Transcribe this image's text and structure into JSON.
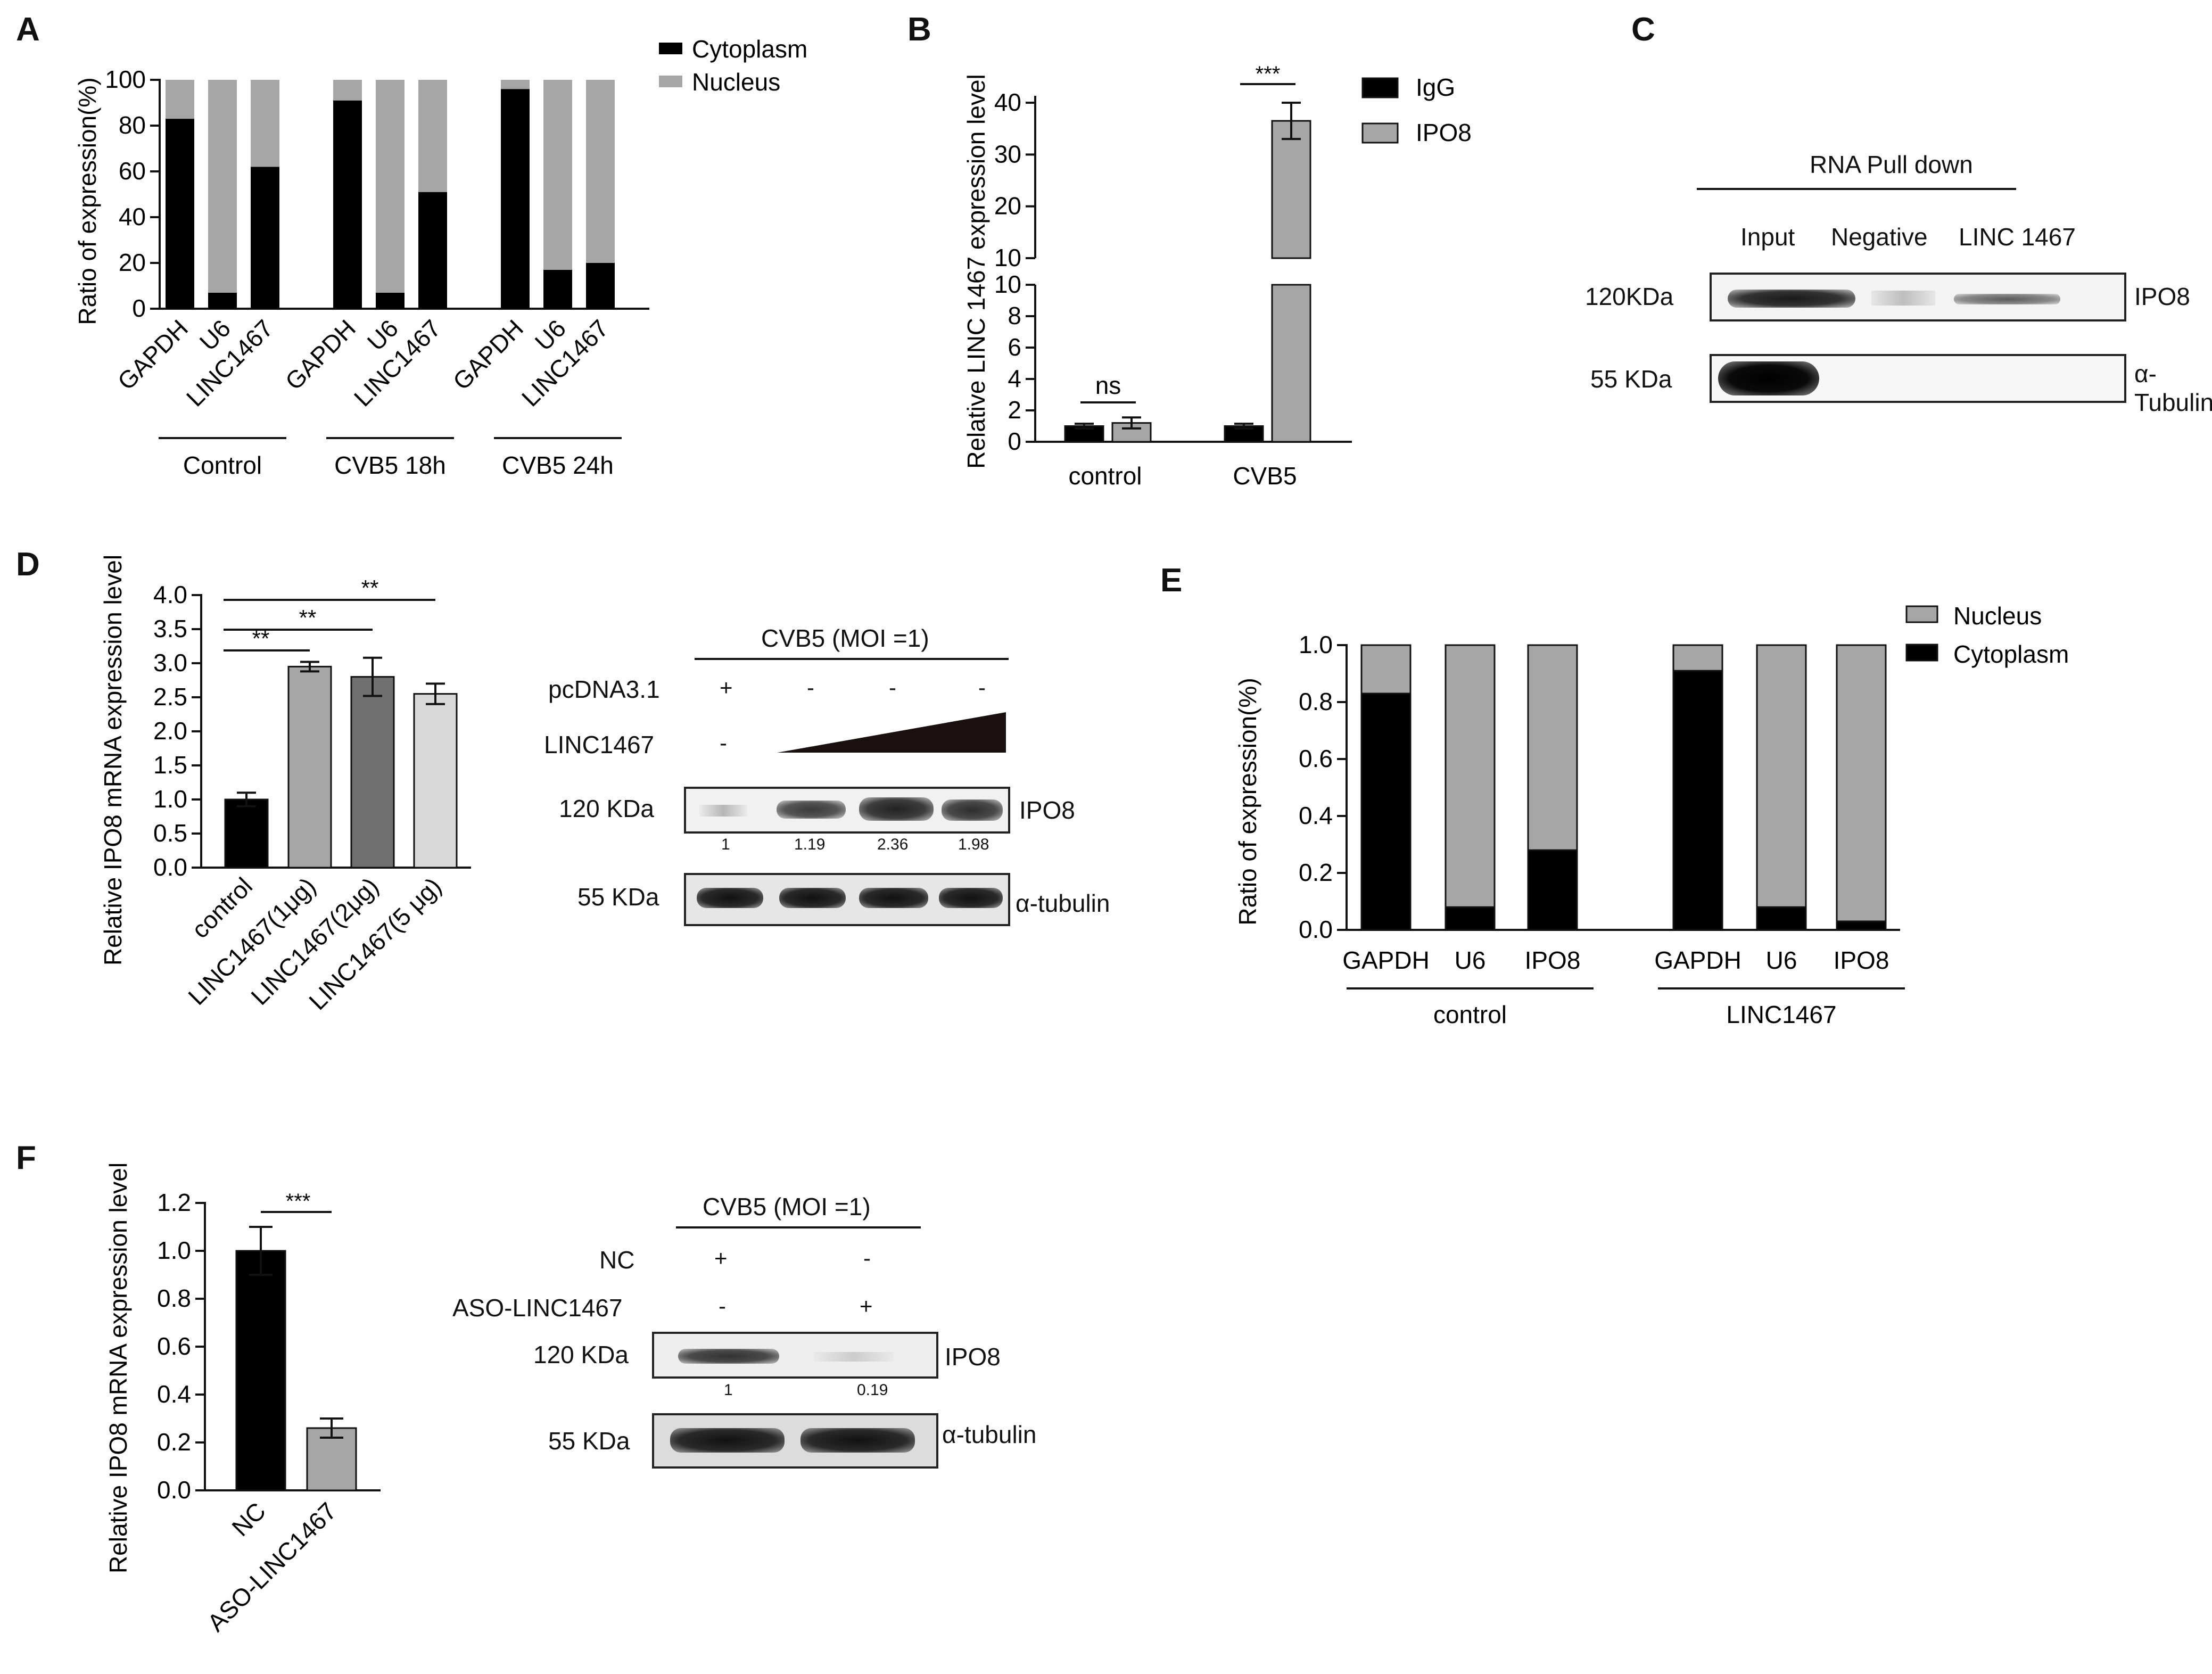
{
  "panels": {
    "A": {
      "label": "A",
      "chart_data": {
        "type": "bar",
        "stacked": true,
        "ylabel": "Ratio of  expression(%)",
        "ylim": [
          0,
          100
        ],
        "yticks": [
          "0",
          "20",
          "40",
          "60",
          "80",
          "100"
        ],
        "categories": [
          "GAPDH",
          "U6",
          "LINC1467",
          "GAPDH",
          "U6",
          "LINC1467",
          "GAPDH",
          "U6",
          "LINC1467"
        ],
        "groups": [
          "Control",
          "CVB5  18h",
          "CVB5   24h"
        ],
        "series": [
          {
            "name": "Cytoplasm",
            "color": "#000000",
            "values": [
              83,
              7,
              62,
              91,
              7,
              51,
              96,
              17,
              20
            ]
          },
          {
            "name": "Nucleus",
            "color": "#a6a6a6",
            "values": [
              17,
              93,
              38,
              9,
              93,
              49,
              4,
              83,
              80
            ]
          }
        ],
        "legend": "top-right"
      }
    },
    "B": {
      "label": "B",
      "chart_data": {
        "type": "bar",
        "ylabel": "Relative LINC 1467 expression level",
        "axis_break": [
          10,
          10
        ],
        "yticks_low": [
          "0",
          "2",
          "4",
          "6",
          "8",
          "10"
        ],
        "yticks_high": [
          "10",
          "20",
          "30",
          "40"
        ],
        "categories": [
          "control",
          "CVB5"
        ],
        "series": [
          {
            "name": "IgG",
            "color": "#000000",
            "values": [
              1.0,
              1.0
            ],
            "errors": [
              0.15,
              0.15
            ]
          },
          {
            "name": "IPO8",
            "color": "#a6a6a6",
            "values": [
              1.2,
              36.5
            ],
            "errors": [
              0.35,
              3.5
            ]
          }
        ],
        "significance": [
          "ns",
          "***"
        ],
        "legend": "top-right"
      }
    },
    "C": {
      "label": "C",
      "header": "RNA Pull down",
      "lanes": [
        "Input",
        "Negative",
        "LINC 1467"
      ],
      "rows": [
        {
          "size": "120KDa",
          "protein": "IPO8"
        },
        {
          "size": "55 KDa",
          "protein": "α-Tubulin"
        }
      ]
    },
    "D": {
      "label": "D",
      "chart_data": {
        "type": "bar",
        "ylabel": "Relative IPO8 mRNA  expression level",
        "ylim": [
          0,
          4
        ],
        "yticks": [
          "0.0",
          "0.5",
          "1.0",
          "1.5",
          "2.0",
          "2.5",
          "3.0",
          "3.5",
          "4.0"
        ],
        "categories": [
          "control",
          "LINC1467(1μg)",
          "LINC1467(2μg)",
          "LINC1467(5 μg)"
        ],
        "values": [
          1.0,
          2.95,
          2.8,
          2.55
        ],
        "errors": [
          0.1,
          0.07,
          0.28,
          0.15
        ],
        "colors": [
          "#000000",
          "#a6a6a6",
          "#707070",
          "#d9d9d9"
        ],
        "significance": [
          "**",
          "**",
          "**"
        ]
      },
      "blot": {
        "header": "CVB5 (MOI =1)",
        "row_labels": [
          "pcDNA3.1",
          "LINC1467"
        ],
        "pcdna_marks": [
          "+",
          "-",
          "-",
          "-"
        ],
        "linc_mark": "-",
        "rows": [
          {
            "size": "120 KDa",
            "protein": "IPO8"
          },
          {
            "size": "55 KDa",
            "protein": "α-tubulin"
          }
        ],
        "quant": [
          "1",
          "1.19",
          "2.36",
          "1.98"
        ]
      }
    },
    "E": {
      "label": "E",
      "chart_data": {
        "type": "bar",
        "stacked": true,
        "ylabel": "Ratio of  expression(%)",
        "ylim": [
          0,
          1.0
        ],
        "yticks": [
          "0.0",
          "0.2",
          "0.4",
          "0.6",
          "0.8",
          "1.0"
        ],
        "categories": [
          "GAPDH",
          "U6",
          "IPO8",
          "GAPDH",
          "U6",
          "IPO8"
        ],
        "groups": [
          "control",
          "LINC1467"
        ],
        "series": [
          {
            "name": "Cytoplasm",
            "color": "#000000",
            "values": [
              0.83,
              0.08,
              0.28,
              0.91,
              0.08,
              0.03
            ]
          },
          {
            "name": "Nucleus",
            "color": "#a6a6a6",
            "values": [
              0.17,
              0.92,
              0.72,
              0.09,
              0.92,
              0.97
            ]
          }
        ],
        "legend_order": [
          "Nucleus",
          "Cytoplasm"
        ],
        "legend": "top-right"
      }
    },
    "F": {
      "label": "F",
      "chart_data": {
        "type": "bar",
        "ylabel": "Relative IPO8 mRNA  expression level",
        "ylim": [
          0,
          1.2
        ],
        "yticks": [
          "0.0",
          "0.2",
          "0.4",
          "0.6",
          "0.8",
          "1.0",
          "1.2"
        ],
        "categories": [
          "NC",
          "ASO-LINC1467"
        ],
        "values": [
          1.0,
          0.26
        ],
        "errors": [
          0.1,
          0.04
        ],
        "colors": [
          "#000000",
          "#a6a6a6"
        ],
        "significance": [
          "***"
        ]
      },
      "blot": {
        "header": "CVB5 (MOI =1)",
        "row_labels": [
          "NC",
          "ASO-LINC1467"
        ],
        "marks": [
          [
            "+",
            "-"
          ],
          [
            "-",
            "+"
          ]
        ],
        "rows": [
          {
            "size": "120 KDa",
            "protein": "IPO8"
          },
          {
            "size": "55 KDa",
            "protein": "α-tubulin"
          }
        ],
        "quant": [
          "1",
          "0.19"
        ]
      }
    }
  }
}
